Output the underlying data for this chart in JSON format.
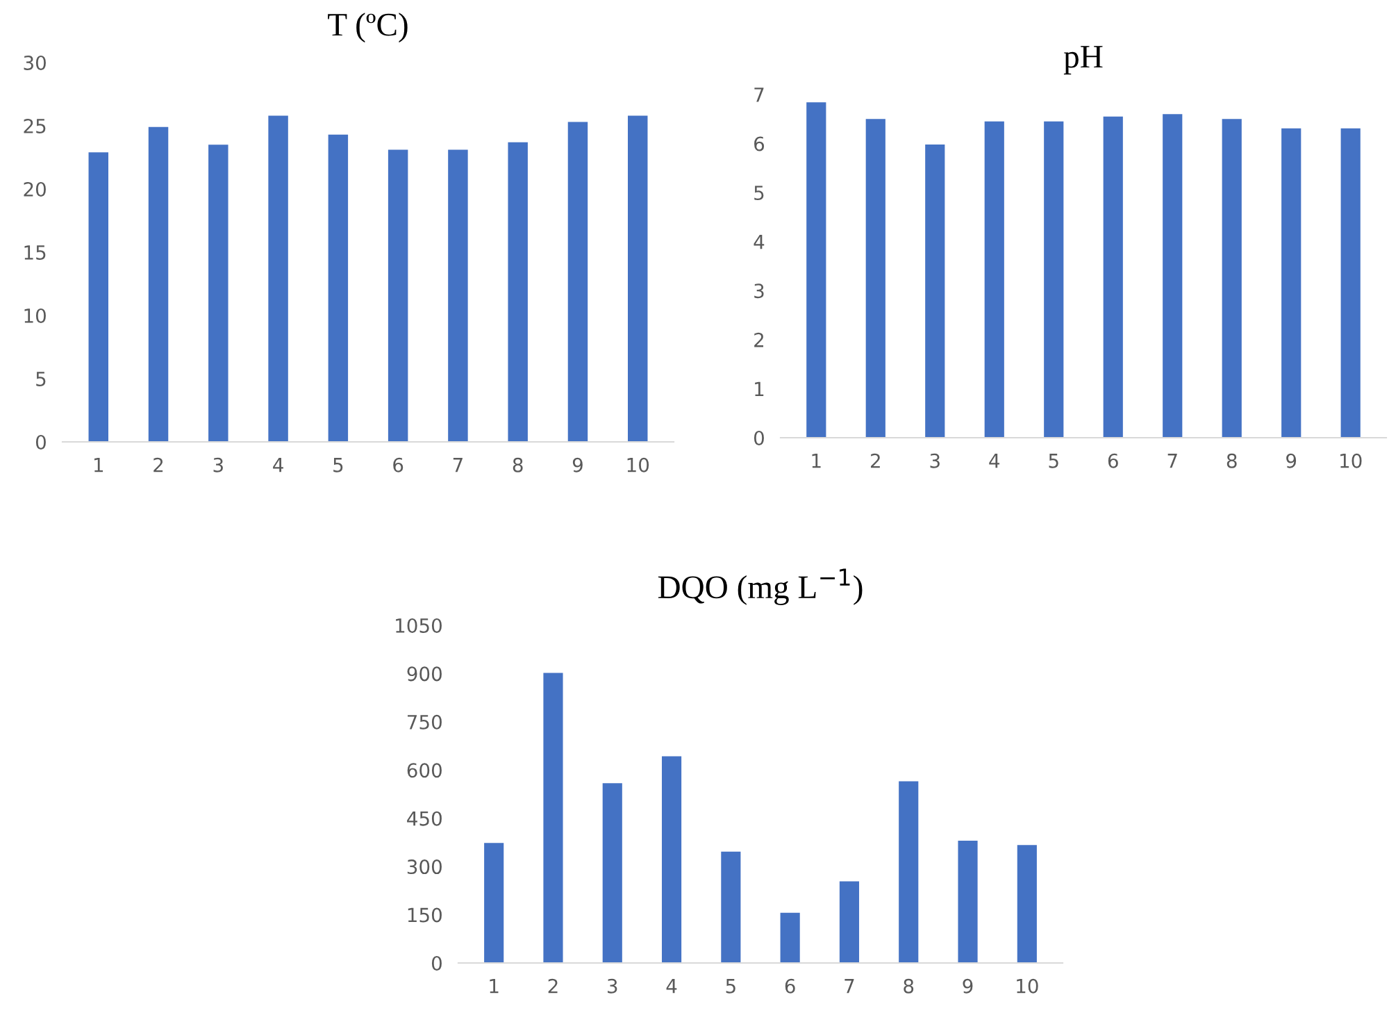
{
  "chart_data": [
    {
      "type": "bar",
      "title": "T (ºC)",
      "categories": [
        "1",
        "2",
        "3",
        "4",
        "5",
        "6",
        "7",
        "8",
        "9",
        "10"
      ],
      "values": [
        22.9,
        24.9,
        23.5,
        25.8,
        24.3,
        23.1,
        23.1,
        23.7,
        25.3,
        25.8
      ],
      "color": "#4472c4",
      "ylim": [
        0,
        30
      ],
      "yticks": [
        0,
        5,
        10,
        15,
        20,
        25,
        30
      ],
      "grid": false
    },
    {
      "type": "bar",
      "title": "pH",
      "categories": [
        "1",
        "2",
        "3",
        "4",
        "5",
        "6",
        "7",
        "8",
        "9",
        "10"
      ],
      "values": [
        6.84,
        6.5,
        5.98,
        6.45,
        6.45,
        6.55,
        6.6,
        6.5,
        6.31,
        6.31
      ],
      "color": "#4472c4",
      "ylim": [
        0,
        7
      ],
      "yticks": [
        0,
        1,
        2,
        3,
        4,
        5,
        6,
        7
      ],
      "grid": false
    },
    {
      "type": "bar",
      "title": "DQO (mg L$^{−1}$)",
      "categories": [
        "1",
        "2",
        "3",
        "4",
        "5",
        "6",
        "7",
        "8",
        "9",
        "10"
      ],
      "values": [
        373,
        902,
        559,
        643,
        346,
        156,
        254,
        565,
        380,
        367
      ],
      "color": "#4472c4",
      "ylim": [
        0,
        1050
      ],
      "yticks": [
        0,
        150,
        300,
        450,
        600,
        750,
        900,
        1050
      ],
      "grid": false
    }
  ]
}
